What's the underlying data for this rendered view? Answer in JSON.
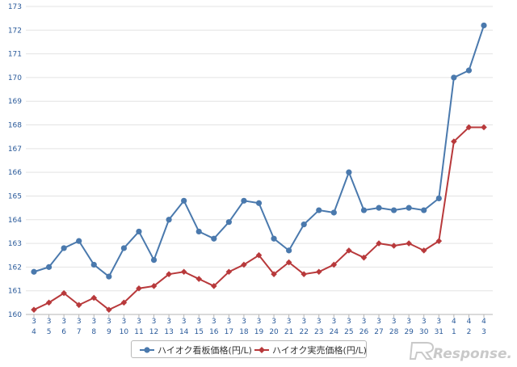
{
  "chart_data": {
    "type": "line",
    "x_day": [
      "4",
      "5",
      "6",
      "7",
      "8",
      "9",
      "10",
      "11",
      "12",
      "13",
      "14",
      "15",
      "16",
      "17",
      "18",
      "19",
      "20",
      "21",
      "22",
      "23",
      "24",
      "25",
      "26",
      "27",
      "28",
      "29",
      "30",
      "31",
      "1",
      "2",
      "3"
    ],
    "x_month": [
      "3",
      "3",
      "3",
      "3",
      "3",
      "3",
      "3",
      "3",
      "3",
      "3",
      "3",
      "3",
      "3",
      "3",
      "3",
      "3",
      "3",
      "3",
      "3",
      "3",
      "3",
      "3",
      "3",
      "3",
      "3",
      "3",
      "3",
      "3",
      "4",
      "4",
      "4"
    ],
    "ylim": [
      160,
      173
    ],
    "yticks": [
      160,
      161,
      162,
      163,
      164,
      165,
      166,
      167,
      168,
      169,
      170,
      171,
      172,
      173
    ],
    "grid": true,
    "legend_position": "bottom",
    "series": [
      {
        "name": "ハイオク看板価格(円/L)",
        "color": "#4a79ad",
        "marker": "circle",
        "values": [
          161.8,
          162.0,
          162.8,
          163.1,
          162.1,
          161.6,
          162.8,
          163.5,
          162.3,
          164.0,
          164.8,
          163.5,
          163.2,
          163.9,
          164.8,
          164.7,
          163.2,
          162.7,
          163.8,
          164.4,
          164.3,
          166.0,
          164.4,
          164.5,
          164.4,
          164.5,
          164.4,
          164.9,
          170.0,
          170.3,
          172.2
        ]
      },
      {
        "name": "ハイオク実売価格(円/L)",
        "color": "#b8393b",
        "marker": "diamond",
        "values": [
          160.2,
          160.5,
          160.9,
          160.4,
          160.7,
          160.2,
          160.5,
          161.1,
          161.2,
          161.7,
          161.8,
          161.5,
          161.2,
          161.8,
          162.1,
          162.5,
          161.7,
          162.2,
          161.7,
          161.8,
          162.1,
          162.7,
          162.4,
          163.0,
          162.9,
          163.0,
          162.7,
          163.1,
          167.3,
          167.9,
          167.9
        ]
      }
    ]
  },
  "watermark": {
    "text": "Response."
  }
}
